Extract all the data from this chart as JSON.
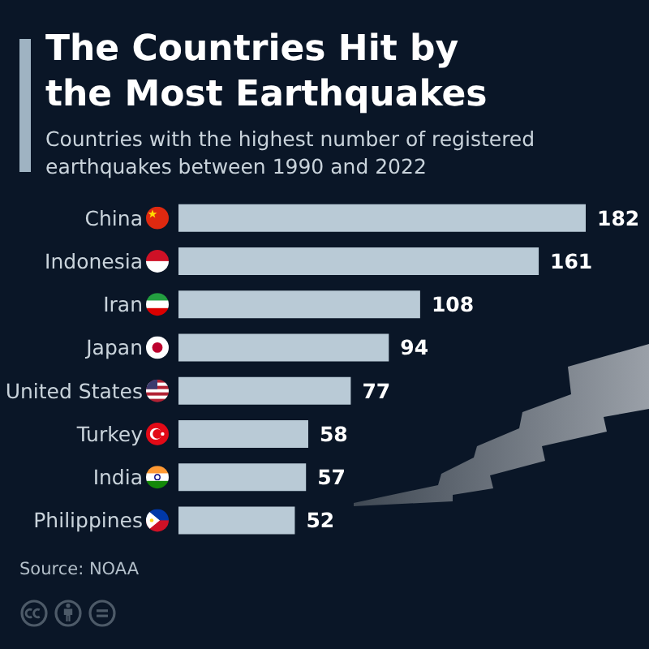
{
  "chart_data": {
    "type": "bar",
    "orientation": "horizontal",
    "title": "The Countries Hit by the Most Earthquakes",
    "subtitle": "Countries with the highest number of registered earthquakes between 1990 and 2022",
    "categories": [
      "China",
      "Indonesia",
      "Iran",
      "Japan",
      "United States",
      "Turkey",
      "India",
      "Philippines"
    ],
    "values": [
      182,
      161,
      108,
      94,
      77,
      58,
      57,
      52
    ],
    "color": "#b9cad6",
    "data_labels": true,
    "annotations": [
      "Source: NOAA"
    ]
  }
}
